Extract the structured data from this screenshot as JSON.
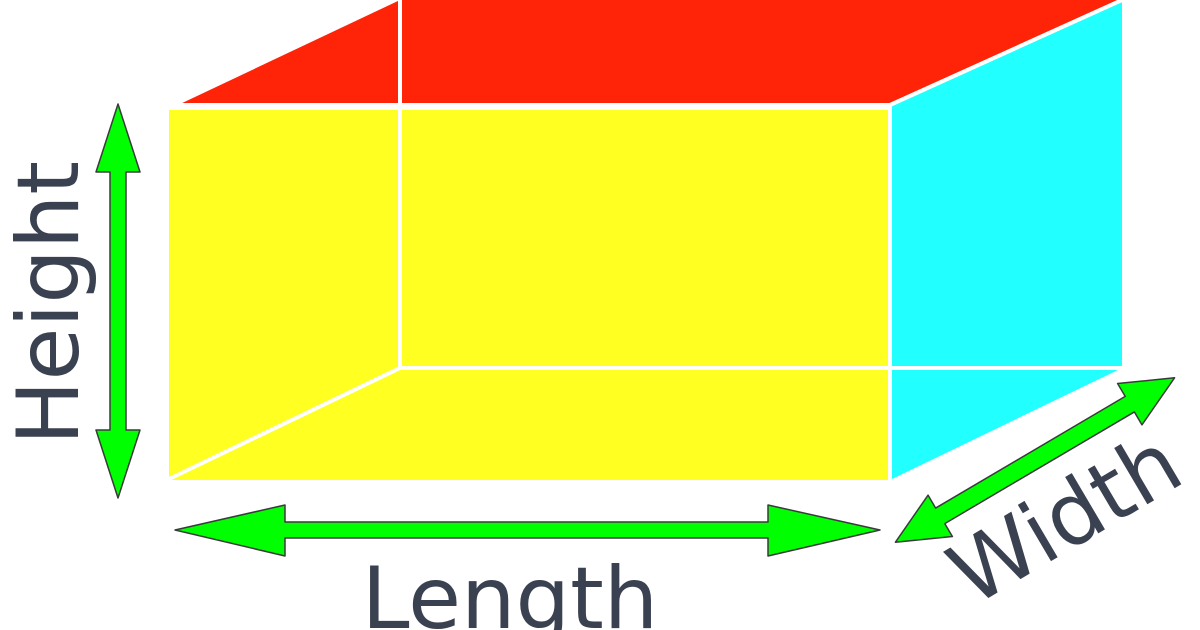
{
  "labels": {
    "height": "Height",
    "length": "Length",
    "width": "Width"
  },
  "colors": {
    "top_face": "#ff2308",
    "front_face": "#ffff22",
    "side_face": "#22ffff",
    "edges": "#ffffff",
    "arrows": "#00ff00",
    "arrow_outline": "#3a3a3a",
    "label_text": "#3a4150"
  }
}
